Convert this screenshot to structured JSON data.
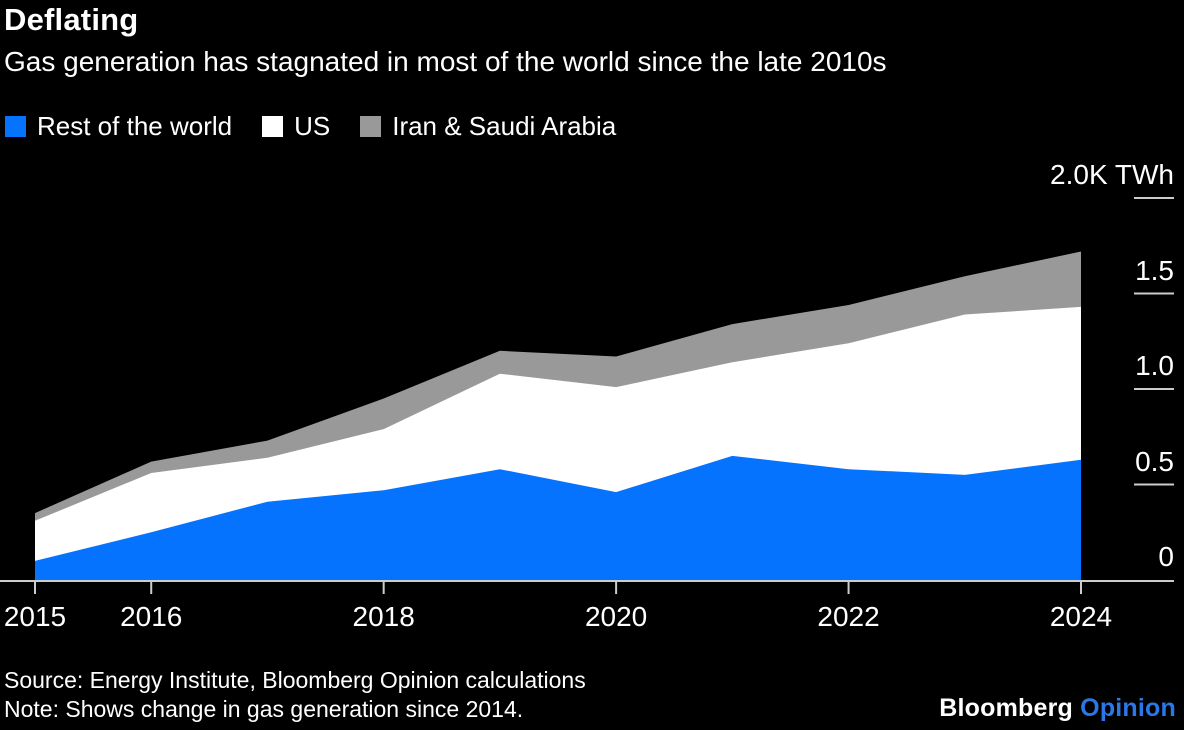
{
  "colors": {
    "background": "#000000",
    "axis_line": "#cccccc",
    "text": "#ffffff",
    "opinion_blue": "#2b77e8"
  },
  "chart_data": {
    "type": "area",
    "stacked": true,
    "title": "Deflating",
    "subtitle": "Gas generation has stagnated in most of the world since the late 2010s",
    "unit": "K TWh",
    "x": [
      2015,
      2016,
      2017,
      2018,
      2019,
      2020,
      2021,
      2022,
      2023,
      2024
    ],
    "series": [
      {
        "name": "Rest of the world",
        "color": "#0673ff",
        "values": [
          0.1,
          0.25,
          0.41,
          0.47,
          0.58,
          0.46,
          0.65,
          0.58,
          0.55,
          0.63
        ]
      },
      {
        "name": "US",
        "color": "#ffffff",
        "values": [
          0.21,
          0.31,
          0.23,
          0.32,
          0.5,
          0.55,
          0.49,
          0.66,
          0.84,
          0.8
        ]
      },
      {
        "name": "Iran & Saudi Arabia",
        "color": "#999999",
        "values": [
          0.04,
          0.06,
          0.09,
          0.16,
          0.12,
          0.16,
          0.2,
          0.2,
          0.2,
          0.29
        ]
      }
    ],
    "ylim": [
      0,
      2.0
    ],
    "y_ticks": [
      {
        "value": 0,
        "label": "0"
      },
      {
        "value": 0.5,
        "label": "0.5"
      },
      {
        "value": 1.0,
        "label": "1.0"
      },
      {
        "value": 1.5,
        "label": "1.5"
      },
      {
        "value": 2.0,
        "label": "2.0K TWh"
      }
    ],
    "x_ticks": [
      {
        "value": 2015,
        "label": "2015"
      },
      {
        "value": 2016,
        "label": "2016"
      },
      {
        "value": 2018,
        "label": "2018"
      },
      {
        "value": 2020,
        "label": "2020"
      },
      {
        "value": 2022,
        "label": "2022"
      },
      {
        "value": 2024,
        "label": "2024"
      }
    ],
    "legend_position": "top-left",
    "grid": false
  },
  "footer": {
    "source": "Source: Energy Institute, Bloomberg Opinion calculations",
    "note": "Note: Shows change in gas generation since 2014.",
    "logo_primary": "Bloomberg",
    "logo_secondary": "Opinion"
  }
}
